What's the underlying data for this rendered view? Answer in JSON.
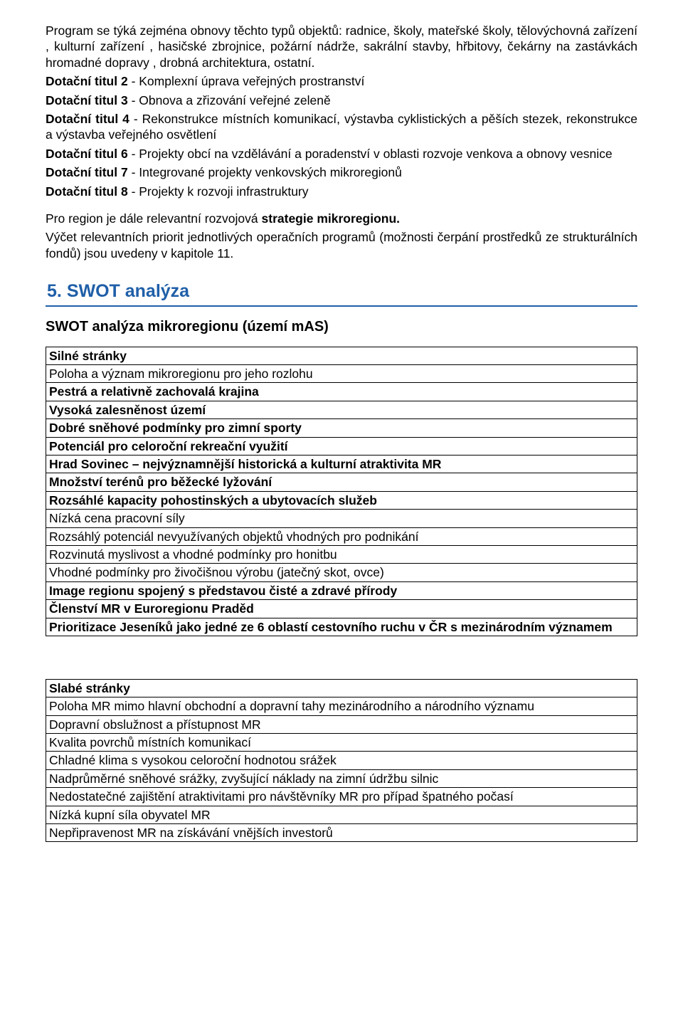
{
  "intro": {
    "p1": "Program se týká zejména obnovy těchto typů objektů: radnice, školy, mateřské školy, tělovýchovná zařízení , kulturní zařízení , hasičské zbrojnice, požární nádrže, sakrální stavby, hřbitovy, čekárny na zastávkách hromadné dopravy , drobná architektura, ostatní.",
    "items": [
      {
        "b": "Dotační titul 2",
        "t": " - Komplexní úprava veřejných prostranství"
      },
      {
        "b": "Dotační titul 3",
        "t": " - Obnova a zřizování veřejné zeleně"
      },
      {
        "b": "Dotační titul 4",
        "t": " - Rekonstrukce místních komunikací, výstavba cyklistických a pěších stezek, rekonstrukce a výstavba veřejného osvětlení"
      },
      {
        "b": "Dotační titul 6",
        "t": " - Projekty obcí na vzdělávání a poradenství v oblasti rozvoje venkova a obnovy vesnice"
      },
      {
        "b": "Dotační titul 7",
        "t": " - Integrované projekty venkovských mikroregionů"
      },
      {
        "b": "Dotační titul 8",
        "t": " - Projekty k rozvoji infrastruktury"
      }
    ],
    "p2a": "Pro region je dále relevantní rozvojová ",
    "p2b": "strategie mikroregionu.",
    "p3": "Výčet relevantních priorit jednotlivých operačních programů (možnosti čerpání prostředků ze strukturálních fondů) jsou uvedeny v kapitole 11."
  },
  "section": {
    "num": "5.",
    "title": "SWOT analýza",
    "subtitle": "SWOT analýza mikroregionu  (území mAS)"
  },
  "strengths": {
    "head": "Silné stránky",
    "rows": [
      {
        "t": "Poloha a význam mikroregionu pro jeho rozlohu",
        "b": false
      },
      {
        "t": "Pestrá a relativně zachovalá krajina",
        "b": true
      },
      {
        "t": "Vysoká zalesněnost území",
        "b": true
      },
      {
        "t": "Dobré sněhové podmínky pro zimní sporty",
        "b": true
      },
      {
        "t": "Potenciál pro celoroční rekreační využití",
        "b": true
      },
      {
        "t": "Hrad Sovinec – nejvýznamnější historická a kulturní atraktivita MR",
        "b": true
      },
      {
        "t": "Množství terénů pro běžecké lyžování",
        "b": true
      },
      {
        "t": "Rozsáhlé kapacity pohostinských a ubytovacích služeb",
        "b": true
      },
      {
        "t": "Nízká cena pracovní síly",
        "b": false
      },
      {
        "t": "Rozsáhlý potenciál nevyužívaných objektů vhodných pro podnikání",
        "b": false
      },
      {
        "t": "Rozvinutá myslivost a vhodné podmínky pro honitbu",
        "b": false
      },
      {
        "t": "Vhodné podmínky pro živočišnou výrobu (jatečný skot, ovce)",
        "b": false
      },
      {
        "t": "Image regionu spojený s představou čisté a zdravé přírody",
        "b": true
      },
      {
        "t": "Členství MR v Euroregionu Praděd",
        "b": true
      },
      {
        "t": "Prioritizace Jeseníků jako jedné ze 6 oblastí cestovního ruchu v ČR s mezinárodním významem",
        "b": true
      }
    ]
  },
  "weaknesses": {
    "head": "Slabé stránky",
    "rows": [
      {
        "t": "Poloha MR mimo hlavní obchodní a dopravní tahy mezinárodního a národního významu",
        "b": false
      },
      {
        "t": "Dopravní obslužnost a přístupnost MR",
        "b": false
      },
      {
        "t": "Kvalita povrchů místních komunikací",
        "b": false
      },
      {
        "t": "Chladné klima s vysokou celoroční hodnotou srážek",
        "b": false
      },
      {
        "t": "Nadprůměrné sněhové srážky, zvyšující náklady na zimní údržbu silnic",
        "b": false
      },
      {
        "t": "Nedostatečné zajištění atraktivitami pro návštěvníky MR pro případ špatného počasí",
        "b": false
      },
      {
        "t": "Nízká kupní síla obyvatel MR",
        "b": false
      },
      {
        "t": "Nepřipravenost MR na získávání vnějších investorů",
        "b": false
      }
    ]
  }
}
